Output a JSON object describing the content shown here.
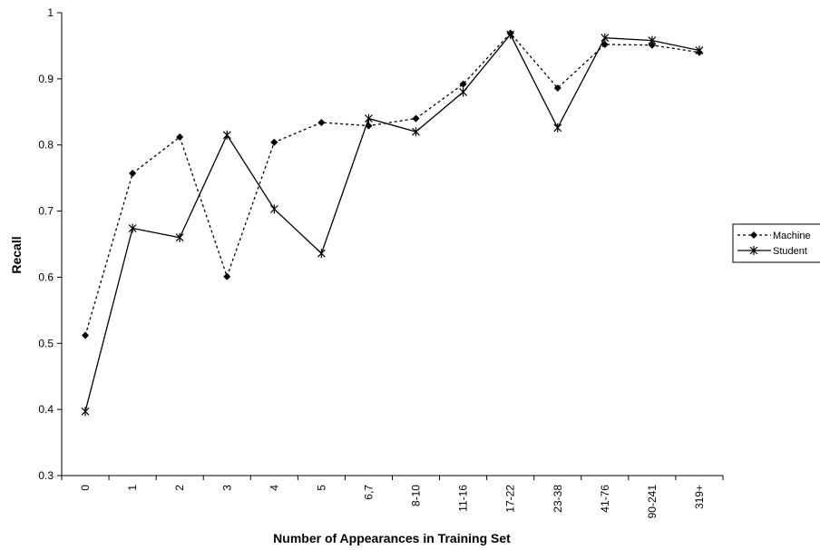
{
  "chart_data": {
    "type": "line",
    "title": "",
    "xlabel": "Number of Appearances in Training Set",
    "ylabel": "Recall",
    "categories": [
      "0",
      "1",
      "2",
      "3",
      "4",
      "5",
      "6,7",
      "8-10",
      "11-16",
      "17-22",
      "23-38",
      "41-76",
      "90-241",
      "319+"
    ],
    "ylim": [
      0.3,
      1.0
    ],
    "yticks": [
      "0.3",
      "0.4",
      "0.5",
      "0.6",
      "0.7",
      "0.8",
      "0.9",
      "1"
    ],
    "grid": false,
    "legend_position": "right",
    "series": [
      {
        "name": "Machine",
        "style": "dotted",
        "marker": "diamond",
        "color": "#000000",
        "values": [
          0.512,
          0.757,
          0.812,
          0.601,
          0.804,
          0.834,
          0.829,
          0.84,
          0.892,
          0.969,
          0.886,
          0.952,
          0.951,
          0.94
        ]
      },
      {
        "name": "Student",
        "style": "solid",
        "marker": "star",
        "color": "#000000",
        "values": [
          0.397,
          0.674,
          0.66,
          0.815,
          0.703,
          0.636,
          0.84,
          0.82,
          0.88,
          0.967,
          0.826,
          0.962,
          0.958,
          0.943
        ]
      }
    ]
  }
}
